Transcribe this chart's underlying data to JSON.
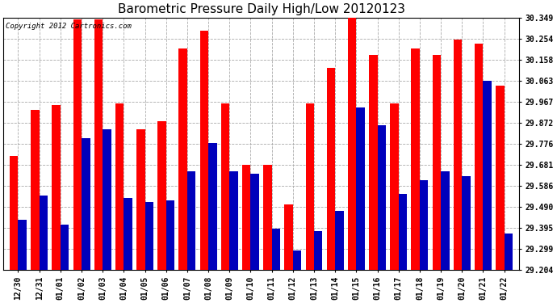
{
  "title": "Barometric Pressure Daily High/Low 20120123",
  "copyright": "Copyright 2012 Cartronics.com",
  "categories": [
    "12/30",
    "12/31",
    "01/01",
    "01/02",
    "01/03",
    "01/04",
    "01/05",
    "01/06",
    "01/07",
    "01/08",
    "01/09",
    "01/10",
    "01/11",
    "01/12",
    "01/13",
    "01/14",
    "01/15",
    "01/16",
    "01/17",
    "01/18",
    "01/19",
    "01/20",
    "01/21",
    "01/22"
  ],
  "high_values": [
    29.72,
    29.93,
    29.95,
    30.34,
    30.34,
    29.96,
    29.84,
    29.88,
    30.21,
    30.29,
    29.96,
    29.68,
    29.68,
    29.5,
    29.96,
    30.12,
    30.35,
    30.18,
    29.96,
    30.21,
    30.18,
    30.25,
    30.23,
    30.04
  ],
  "low_values": [
    29.43,
    29.54,
    29.41,
    29.8,
    29.84,
    29.53,
    29.51,
    29.52,
    29.65,
    29.78,
    29.65,
    29.64,
    29.39,
    29.29,
    29.38,
    29.47,
    29.94,
    29.86,
    29.55,
    29.61,
    29.65,
    29.63,
    30.06,
    29.37
  ],
  "bar_color_high": "#FF0000",
  "bar_color_low": "#0000BB",
  "background_color": "#FFFFFF",
  "plot_bg_color": "#FFFFFF",
  "grid_color": "#AAAAAA",
  "yticks": [
    29.204,
    29.299,
    29.395,
    29.49,
    29.586,
    29.681,
    29.776,
    29.872,
    29.967,
    30.063,
    30.158,
    30.254,
    30.349
  ],
  "ytick_labels": [
    "29.204",
    "29.299",
    "29.395",
    "29.490",
    "29.586",
    "29.681",
    "29.776",
    "29.872",
    "29.967",
    "30.063",
    "30.158",
    "30.254",
    "30.349"
  ],
  "ymin": 29.204,
  "ymax": 30.349,
  "title_fontsize": 11,
  "tick_fontsize": 7,
  "bar_width": 0.4
}
